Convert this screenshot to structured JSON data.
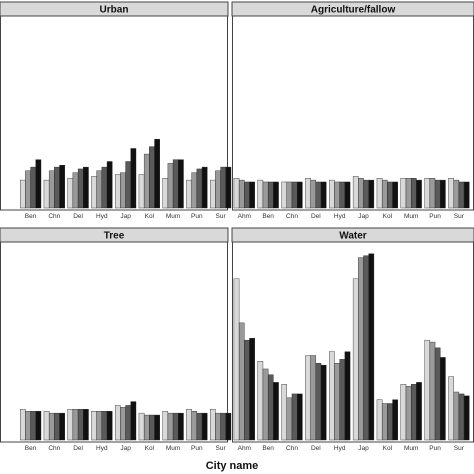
{
  "figure": {
    "xlabel": "City name"
  },
  "chart_data": [
    {
      "type": "bar",
      "title": "Urban",
      "categories": [
        "Ben",
        "Chn",
        "Del",
        "Hyd",
        "Jap",
        "Kol",
        "Mum",
        "Pun",
        "Sur"
      ],
      "ylim": [
        0,
        1
      ],
      "series": [
        {
          "color": "#d9d9d9",
          "values": [
            0.15,
            0.15,
            0.16,
            0.17,
            0.18,
            0.18,
            0.16,
            0.15,
            0.15
          ]
        },
        {
          "color": "#9a9a9a",
          "values": [
            0.2,
            0.2,
            0.19,
            0.2,
            0.19,
            0.29,
            0.24,
            0.19,
            0.2
          ]
        },
        {
          "color": "#5a5a5a",
          "values": [
            0.22,
            0.22,
            0.21,
            0.22,
            0.25,
            0.33,
            0.26,
            0.21,
            0.22
          ]
        },
        {
          "color": "#111111",
          "values": [
            0.26,
            0.23,
            0.22,
            0.25,
            0.32,
            0.37,
            0.26,
            0.22,
            0.22
          ]
        }
      ]
    },
    {
      "type": "bar",
      "title": "Agriculture/fallow",
      "categories": [
        "Ahm",
        "Ben",
        "Chn",
        "Del",
        "Hyd",
        "Jap",
        "Kol",
        "Mum",
        "Pun",
        "Sur"
      ],
      "ylim": [
        0,
        1
      ],
      "series": [
        {
          "color": "#d9d9d9",
          "values": [
            0.16,
            0.15,
            0.14,
            0.16,
            0.15,
            0.17,
            0.16,
            0.16,
            0.16,
            0.16
          ]
        },
        {
          "color": "#9a9a9a",
          "values": [
            0.15,
            0.14,
            0.14,
            0.15,
            0.14,
            0.16,
            0.15,
            0.16,
            0.16,
            0.15
          ]
        },
        {
          "color": "#5a5a5a",
          "values": [
            0.14,
            0.14,
            0.14,
            0.14,
            0.14,
            0.15,
            0.14,
            0.16,
            0.15,
            0.14
          ]
        },
        {
          "color": "#111111",
          "values": [
            0.14,
            0.14,
            0.14,
            0.14,
            0.14,
            0.15,
            0.14,
            0.15,
            0.15,
            0.14
          ]
        }
      ]
    },
    {
      "type": "bar",
      "title": "Tree",
      "categories": [
        "Ben",
        "Chn",
        "Del",
        "Hyd",
        "Jap",
        "Kol",
        "Mum",
        "Pun",
        "Sur"
      ],
      "ylim": [
        0,
        1
      ],
      "series": [
        {
          "color": "#d9d9d9",
          "values": [
            0.16,
            0.15,
            0.16,
            0.15,
            0.18,
            0.14,
            0.15,
            0.16,
            0.16
          ]
        },
        {
          "color": "#9a9a9a",
          "values": [
            0.15,
            0.14,
            0.16,
            0.15,
            0.17,
            0.13,
            0.14,
            0.15,
            0.14
          ]
        },
        {
          "color": "#5a5a5a",
          "values": [
            0.15,
            0.14,
            0.16,
            0.15,
            0.18,
            0.13,
            0.14,
            0.14,
            0.14
          ]
        },
        {
          "color": "#111111",
          "values": [
            0.15,
            0.14,
            0.16,
            0.15,
            0.2,
            0.13,
            0.14,
            0.14,
            0.14
          ]
        }
      ]
    },
    {
      "type": "bar",
      "title": "Water",
      "categories": [
        "Ahm",
        "Ben",
        "Chn",
        "Del",
        "Hyd",
        "Jap",
        "Kol",
        "Mum",
        "Pun",
        "Sur"
      ],
      "ylim": [
        0,
        1
      ],
      "series": [
        {
          "color": "#d9d9d9",
          "values": [
            0.84,
            0.41,
            0.29,
            0.44,
            0.46,
            0.84,
            0.21,
            0.29,
            0.52,
            0.33
          ]
        },
        {
          "color": "#9a9a9a",
          "values": [
            0.61,
            0.37,
            0.22,
            0.44,
            0.4,
            0.95,
            0.19,
            0.28,
            0.51,
            0.25
          ]
        },
        {
          "color": "#5a5a5a",
          "values": [
            0.52,
            0.34,
            0.24,
            0.4,
            0.42,
            0.96,
            0.19,
            0.29,
            0.48,
            0.24
          ]
        },
        {
          "color": "#111111",
          "values": [
            0.53,
            0.3,
            0.24,
            0.39,
            0.46,
            0.97,
            0.21,
            0.3,
            0.43,
            0.23
          ]
        }
      ]
    }
  ]
}
